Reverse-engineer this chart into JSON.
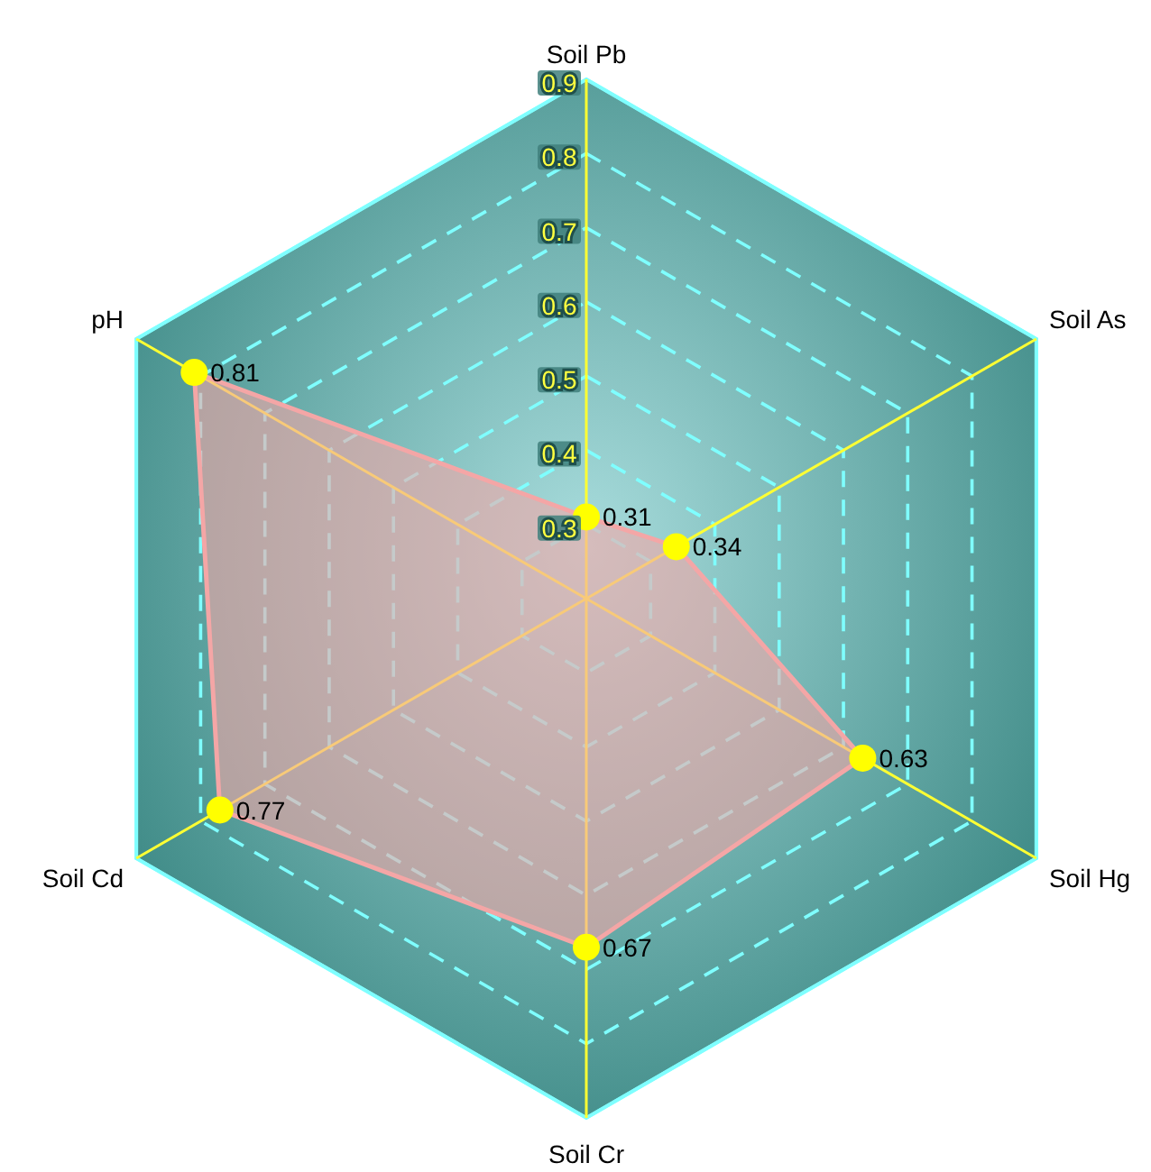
{
  "chart_data": {
    "type": "radar",
    "categories": [
      "Soil Pb",
      "Soil As",
      "Soil Hg",
      "Soil Cr",
      "Soil Cd",
      "pH"
    ],
    "series": [
      {
        "color": "#f4a6a6",
        "values": [
          0.31,
          0.34,
          0.63,
          0.67,
          0.77,
          0.81
        ]
      }
    ],
    "ylim": [
      0.2,
      0.9
    ],
    "yticks": [
      0.3,
      0.4,
      0.5,
      0.6,
      0.7,
      0.8,
      0.9
    ],
    "grid": true,
    "marker": "circle",
    "data_labels": true
  }
}
